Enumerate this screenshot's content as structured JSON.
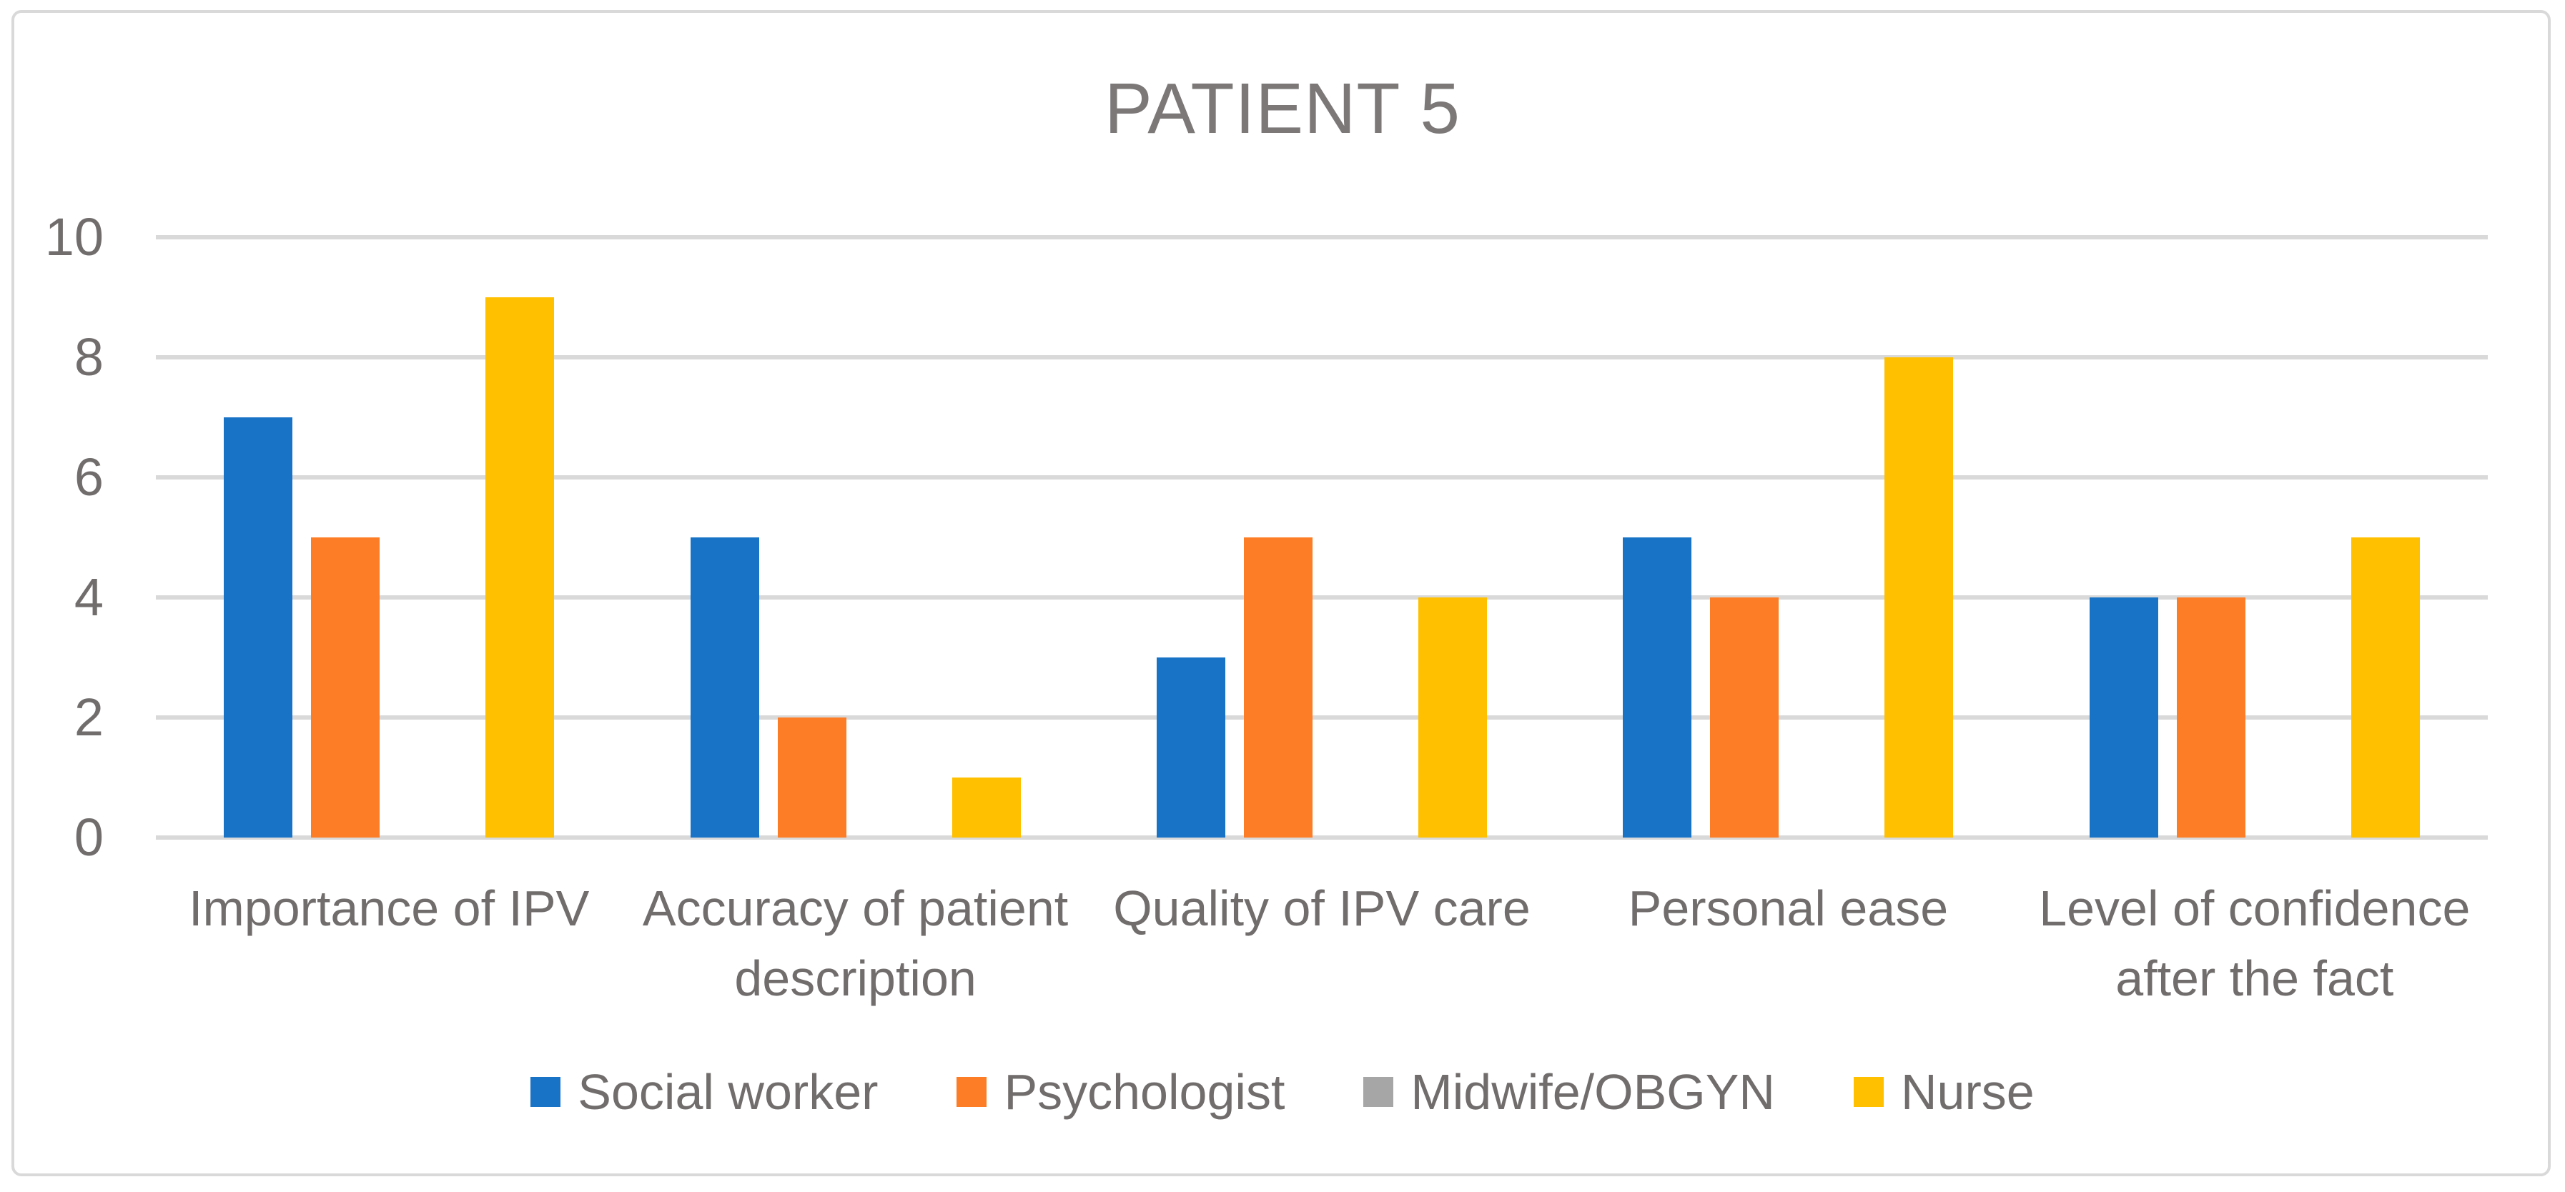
{
  "title": "PATIENT 5",
  "colors": {
    "blue": "#1873C7",
    "orange": "#FD7D26",
    "gray": "#A6A6A6",
    "yellow": "#FFC000",
    "gridline": "#D9D9D9",
    "border": "#D9D9D9",
    "text": "#716D6D",
    "title_text": "#7C7878"
  },
  "chart_data": {
    "type": "bar",
    "title": "PATIENT 5",
    "categories": [
      "Importance of IPV",
      "Accuracy of patient\ndescription",
      "Quality of IPV care",
      "Personal ease",
      "Level of confidence\nafter the fact"
    ],
    "series": [
      {
        "name": "Social worker",
        "color": "#1873C7",
        "values": [
          7,
          5,
          3,
          5,
          4
        ]
      },
      {
        "name": "Psychologist",
        "color": "#FD7D26",
        "values": [
          5,
          2,
          5,
          4,
          4
        ]
      },
      {
        "name": "Midwife/OBGYN",
        "color": "#A6A6A6",
        "values": [
          0,
          0,
          0,
          0,
          0
        ]
      },
      {
        "name": "Nurse",
        "color": "#FFC000",
        "values": [
          9,
          1,
          4,
          8,
          5
        ]
      }
    ],
    "xlabel": "",
    "ylabel": "",
    "ylim": [
      0,
      10
    ],
    "yticks": [
      0,
      2,
      4,
      6,
      8,
      10
    ],
    "grid": true,
    "legend_position": "bottom"
  }
}
